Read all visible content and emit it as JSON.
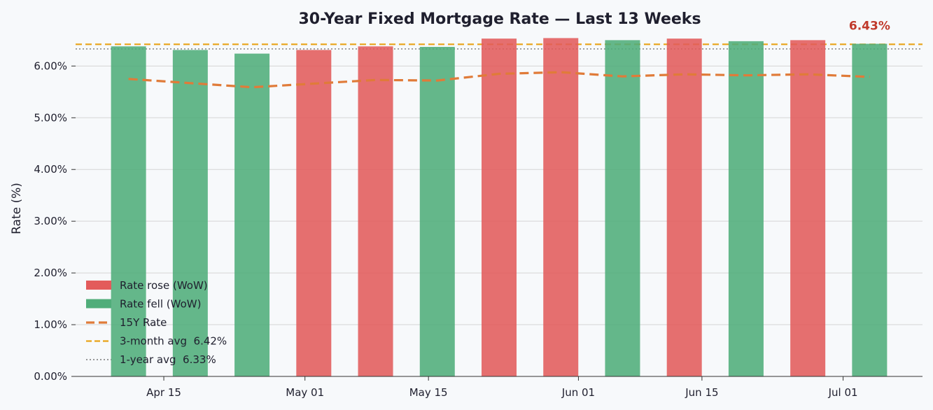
{
  "chart_data": {
    "type": "bar",
    "title": "30-Year Fixed Mortgage Rate — Last 13 Weeks",
    "xlabel": "",
    "ylabel": "Rate (%)",
    "ylim": [
      0,
      6.6
    ],
    "yticks": [
      0,
      1,
      2,
      3,
      4,
      5,
      6
    ],
    "ytick_labels": [
      "0.00%",
      "1.00%",
      "2.00%",
      "3.00%",
      "4.00%",
      "5.00%",
      "6.00%"
    ],
    "xlim": [
      "2024-04-05",
      "2024-07-10"
    ],
    "xticks": [
      "2024-04-15",
      "2024-05-01",
      "2024-05-15",
      "2024-06-01",
      "2024-06-15",
      "2024-07-01"
    ],
    "xtick_labels": [
      "Apr 15",
      "May 01",
      "May 15",
      "Jun 01",
      "Jun 15",
      "Jul 01"
    ],
    "x": [
      "2024-04-11",
      "2024-04-18",
      "2024-04-25",
      "2024-05-02",
      "2024-05-09",
      "2024-05-16",
      "2024-05-23",
      "2024-05-30",
      "2024-06-06",
      "2024-06-13",
      "2024-06-20",
      "2024-06-27",
      "2024-07-04"
    ],
    "series": [
      {
        "name": "30Y Rate",
        "kind": "bar",
        "values": [
          6.38,
          6.31,
          6.24,
          6.31,
          6.38,
          6.37,
          6.53,
          6.54,
          6.5,
          6.53,
          6.48,
          6.5,
          6.43
        ],
        "direction": [
          "fell",
          "fell",
          "fell",
          "rose",
          "rose",
          "fell",
          "rose",
          "rose",
          "fell",
          "rose",
          "fell",
          "rose",
          "fell"
        ]
      },
      {
        "name": "15Y Rate",
        "kind": "line",
        "values": [
          5.75,
          5.67,
          5.59,
          5.66,
          5.73,
          5.72,
          5.85,
          5.88,
          5.8,
          5.84,
          5.82,
          5.84,
          5.79
        ]
      }
    ],
    "reference_lines": [
      {
        "name": "3-month avg",
        "value": 6.42
      },
      {
        "name": "1-year avg",
        "value": 6.33
      }
    ],
    "legend": {
      "placement": "lower-left",
      "entries": [
        "Rate rose (WoW)",
        "Rate fell (WoW)",
        "15Y Rate",
        "3-month avg  6.42%",
        "1-year avg  6.33%"
      ]
    },
    "annotations": [
      {
        "text": "6.43%",
        "target": "last-bar"
      }
    ],
    "grid": true,
    "colors": {
      "rose": "#e35b5b",
      "fell": "#50ad7a",
      "line15y": "#e07b39",
      "avg3m": "#e8a317",
      "avg1y": "#777777",
      "callout": "#c0392b",
      "grid": "#d5d5d5",
      "axis": "#333333"
    }
  }
}
